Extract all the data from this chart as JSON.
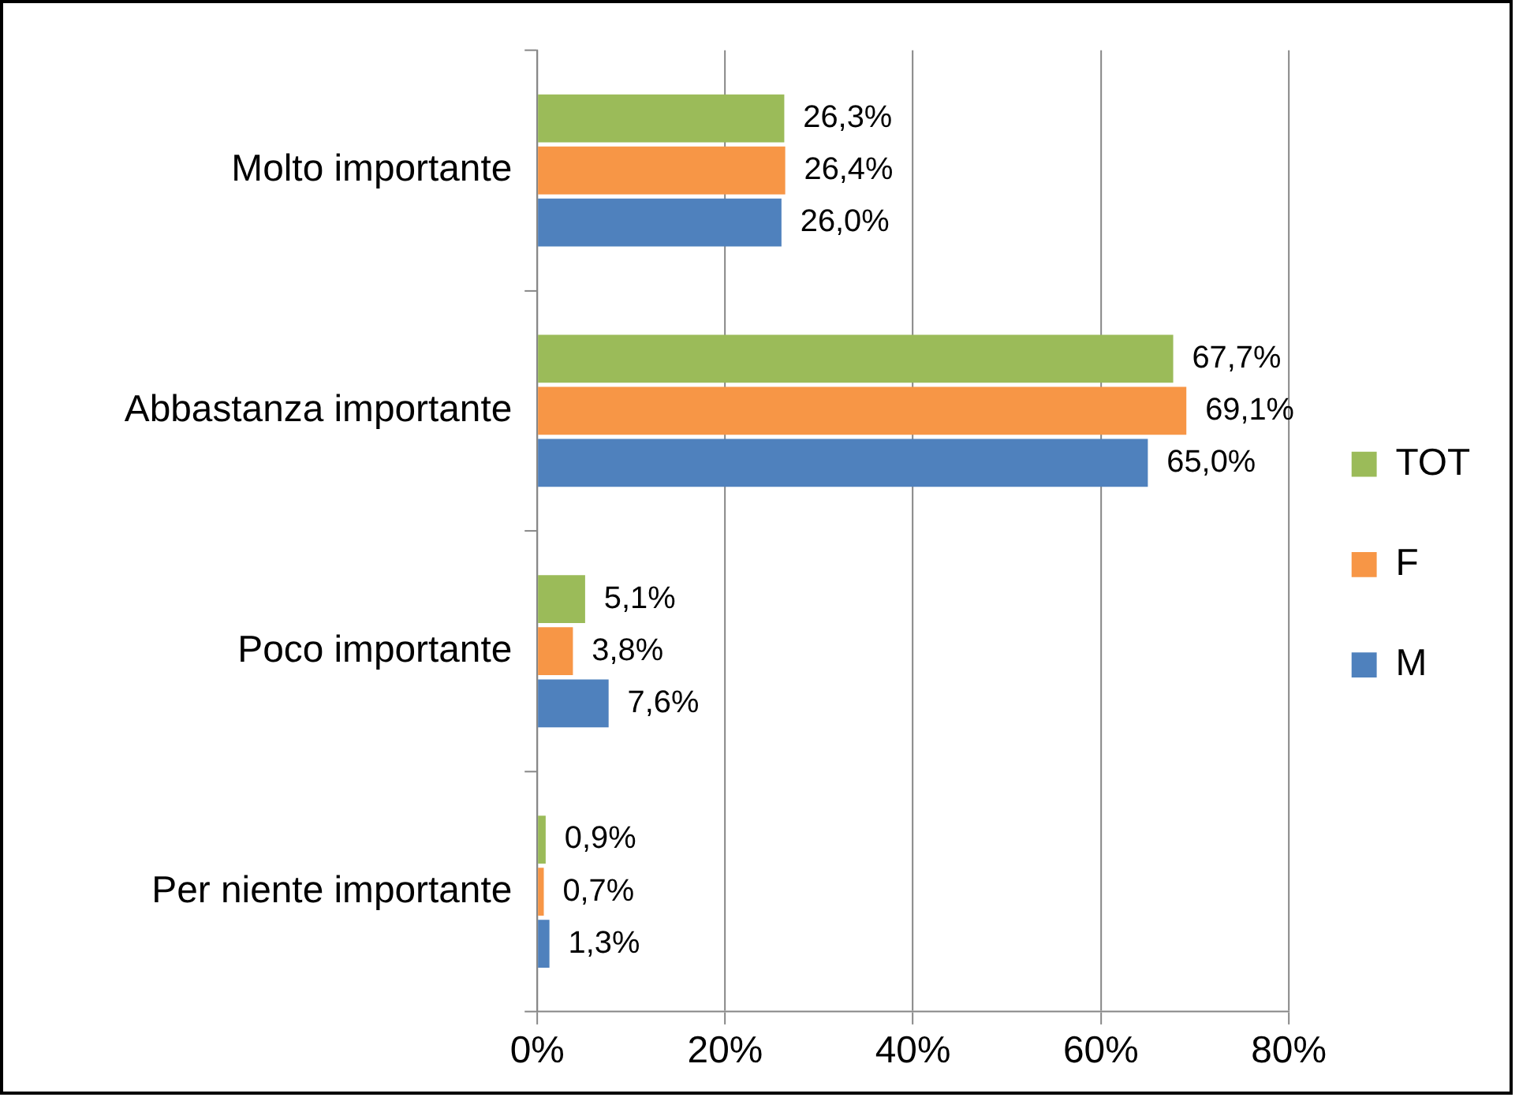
{
  "chart_data": {
    "type": "bar",
    "orientation": "horizontal",
    "categories": [
      "Molto importante",
      "Abbastanza importante",
      "Poco importante",
      "Per niente importante"
    ],
    "series": [
      {
        "name": "TOT",
        "color": "#9bbb59",
        "values": [
          26.3,
          67.7,
          5.1,
          0.9
        ],
        "value_labels": [
          "26,3%",
          "67,7%",
          "5,1%",
          "0,9%"
        ]
      },
      {
        "name": "F",
        "color": "#f79646",
        "values": [
          26.4,
          69.1,
          3.8,
          0.7
        ],
        "value_labels": [
          "26,4%",
          "69,1%",
          "3,8%",
          "0,7%"
        ]
      },
      {
        "name": "M",
        "color": "#4f81bd",
        "values": [
          26.0,
          65.0,
          7.6,
          1.3
        ],
        "value_labels": [
          "26,0%",
          "65,0%",
          "7,6%",
          "1,3%"
        ]
      }
    ],
    "xlim": [
      0,
      80
    ],
    "xticks": [
      {
        "value": 0,
        "label": "0%"
      },
      {
        "value": 20,
        "label": "20%"
      },
      {
        "value": 40,
        "label": "40%"
      },
      {
        "value": 60,
        "label": "60%"
      },
      {
        "value": 80,
        "label": "80%"
      }
    ],
    "grid": "x",
    "legend": "right"
  }
}
